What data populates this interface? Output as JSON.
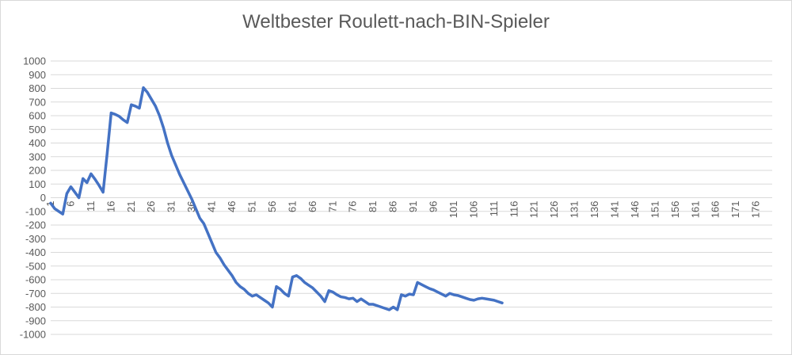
{
  "chart_data": {
    "type": "line",
    "title": "Weltbester Roulett-nach-BIN-Spieler",
    "xlabel": "",
    "ylabel": "",
    "ylim": [
      -1000,
      1000
    ],
    "y_tick_step": 100,
    "x_tick_labels": [
      "1",
      "6",
      "11",
      "16",
      "21",
      "26",
      "31",
      "36",
      "41",
      "46",
      "51",
      "56",
      "61",
      "66",
      "71",
      "76",
      "81",
      "86",
      "91",
      "96",
      "101",
      "106",
      "111",
      "116",
      "121",
      "126",
      "131",
      "136",
      "141",
      "146",
      "151",
      "156",
      "161",
      "166",
      "171",
      "176"
    ],
    "x_range": [
      1,
      180
    ],
    "grid": true,
    "legend": "none",
    "series": [
      {
        "color": "#4472c4",
        "x": [
          1,
          2,
          3,
          4,
          5,
          6,
          7,
          8,
          9,
          10,
          11,
          12,
          13,
          14,
          15,
          16,
          17,
          18,
          19,
          20,
          21,
          22,
          23,
          24,
          25,
          26,
          27,
          28,
          29,
          30,
          31,
          32,
          33,
          34,
          35,
          36,
          37,
          38,
          39,
          40,
          41,
          42,
          43,
          44,
          45,
          46,
          47,
          48,
          49,
          50,
          51,
          52,
          53,
          54,
          55,
          56,
          57,
          58,
          59,
          60,
          61,
          62,
          63,
          64,
          65,
          66,
          67,
          68,
          69,
          70,
          71,
          72,
          73,
          74,
          75,
          76,
          77,
          78,
          79,
          80,
          81,
          82,
          83,
          84,
          85,
          86,
          87,
          88,
          89,
          90,
          91,
          92,
          93,
          94,
          95,
          96,
          97,
          98,
          99,
          100,
          101,
          102,
          103,
          104,
          105,
          106,
          107,
          108,
          109,
          110,
          111,
          112,
          113
        ],
        "values": [
          -40,
          -80,
          -100,
          -120,
          30,
          80,
          40,
          0,
          140,
          110,
          175,
          135,
          90,
          40,
          320,
          620,
          610,
          595,
          570,
          550,
          680,
          670,
          655,
          805,
          770,
          720,
          670,
          600,
          510,
          400,
          310,
          240,
          170,
          110,
          50,
          -10,
          -80,
          -150,
          -190,
          -260,
          -330,
          -400,
          -440,
          -490,
          -530,
          -570,
          -620,
          -650,
          -670,
          -700,
          -720,
          -710,
          -730,
          -750,
          -770,
          -800,
          -650,
          -670,
          -700,
          -720,
          -580,
          -570,
          -590,
          -620,
          -640,
          -660,
          -690,
          -720,
          -760,
          -680,
          -690,
          -710,
          -725,
          -730,
          -740,
          -735,
          -760,
          -740,
          -760,
          -780,
          -780,
          -790,
          -800,
          -810,
          -820,
          -800,
          -820,
          -710,
          -720,
          -705,
          -710,
          -620,
          -635,
          -650,
          -665,
          -675,
          -690,
          -705,
          -720,
          -700,
          -710,
          -715,
          -725,
          -735,
          -745,
          -750,
          -740,
          -735,
          -740,
          -745,
          -750,
          -760,
          -770
        ]
      }
    ]
  }
}
